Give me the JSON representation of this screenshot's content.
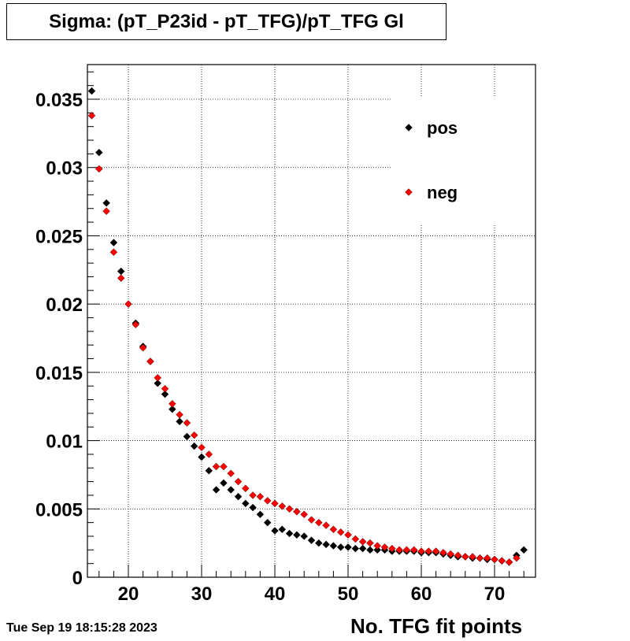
{
  "title": "Sigma: (pT_P23id - pT_TFG)/pT_TFG Gl",
  "timestamp": "Tue Sep 19 18:15:28 2023",
  "colors": {
    "pos": "#000000",
    "neg": "#ff0000"
  },
  "chart_data": {
    "type": "scatter",
    "title": "Sigma: (pT_P23id - pT_TFG)/pT_TFG Gl",
    "xlabel": "No. TFG fit points",
    "ylabel": "",
    "xlim": [
      15,
      76
    ],
    "ylim": [
      0,
      0.0375
    ],
    "xticks": [
      20,
      30,
      40,
      50,
      60,
      70
    ],
    "yticks": [
      0,
      0.005,
      0.01,
      0.015,
      0.02,
      0.025,
      0.03,
      0.035
    ],
    "ytick_labels": [
      "0",
      "0.005",
      "0.01",
      "0.015",
      "0.02",
      "0.025",
      "0.03",
      "0.035"
    ],
    "grid": true,
    "legend": "top-right",
    "series": [
      {
        "name": "pos",
        "color": "#000000",
        "x": [
          15,
          16,
          17,
          18,
          19,
          21,
          22,
          23,
          24,
          25,
          26,
          27,
          28,
          29,
          30,
          31,
          32,
          33,
          34,
          35,
          36,
          37,
          38,
          39,
          40,
          41,
          42,
          43,
          44,
          45,
          46,
          47,
          48,
          49,
          50,
          51,
          52,
          53,
          54,
          55,
          56,
          57,
          58,
          59,
          60,
          61,
          62,
          63,
          64,
          65,
          66,
          67,
          68,
          69,
          70,
          71,
          72,
          73,
          74
        ],
        "y": [
          0.0356,
          0.0311,
          0.0274,
          0.0245,
          0.0224,
          0.0186,
          0.0169,
          0.0158,
          0.0142,
          0.0134,
          0.0123,
          0.0114,
          0.0103,
          0.0096,
          0.0088,
          0.0078,
          0.0064,
          0.0069,
          0.0064,
          0.0059,
          0.0054,
          0.0051,
          0.0046,
          0.004,
          0.0034,
          0.0035,
          0.0032,
          0.0031,
          0.003,
          0.0027,
          0.0025,
          0.0024,
          0.0023,
          0.0022,
          0.0022,
          0.0021,
          0.0021,
          0.002,
          0.002,
          0.002,
          0.0019,
          0.0019,
          0.0019,
          0.0019,
          0.0018,
          0.0018,
          0.0018,
          0.0017,
          0.0016,
          0.0015,
          0.0015,
          0.0014,
          0.0014,
          0.0013,
          0.0013,
          0.0012,
          0.0011,
          0.0016,
          0.002
        ]
      },
      {
        "name": "neg",
        "color": "#ff0000",
        "x": [
          15,
          16,
          17,
          18,
          19,
          20,
          21,
          22,
          23,
          24,
          25,
          26,
          27,
          28,
          29,
          30,
          31,
          32,
          33,
          34,
          35,
          36,
          37,
          38,
          39,
          40,
          41,
          42,
          43,
          44,
          45,
          46,
          47,
          48,
          49,
          50,
          51,
          52,
          53,
          54,
          55,
          56,
          57,
          58,
          59,
          60,
          61,
          62,
          63,
          64,
          65,
          66,
          67,
          68,
          69,
          70,
          71,
          72,
          73
        ],
        "y": [
          0.0338,
          0.0299,
          0.0268,
          0.0238,
          0.0219,
          0.02,
          0.0185,
          0.0168,
          0.0158,
          0.0146,
          0.0138,
          0.0127,
          0.0119,
          0.0113,
          0.0104,
          0.0095,
          0.009,
          0.0081,
          0.0081,
          0.0076,
          0.007,
          0.0065,
          0.006,
          0.0059,
          0.0056,
          0.0054,
          0.0052,
          0.005,
          0.0048,
          0.0046,
          0.0042,
          0.004,
          0.0038,
          0.0035,
          0.0033,
          0.0031,
          0.0028,
          0.0026,
          0.0025,
          0.0023,
          0.0022,
          0.0021,
          0.002,
          0.002,
          0.002,
          0.0019,
          0.0019,
          0.0019,
          0.0018,
          0.0017,
          0.0016,
          0.0015,
          0.0015,
          0.0014,
          0.0014,
          0.0013,
          0.0012,
          0.0011,
          0.0014
        ]
      }
    ]
  }
}
